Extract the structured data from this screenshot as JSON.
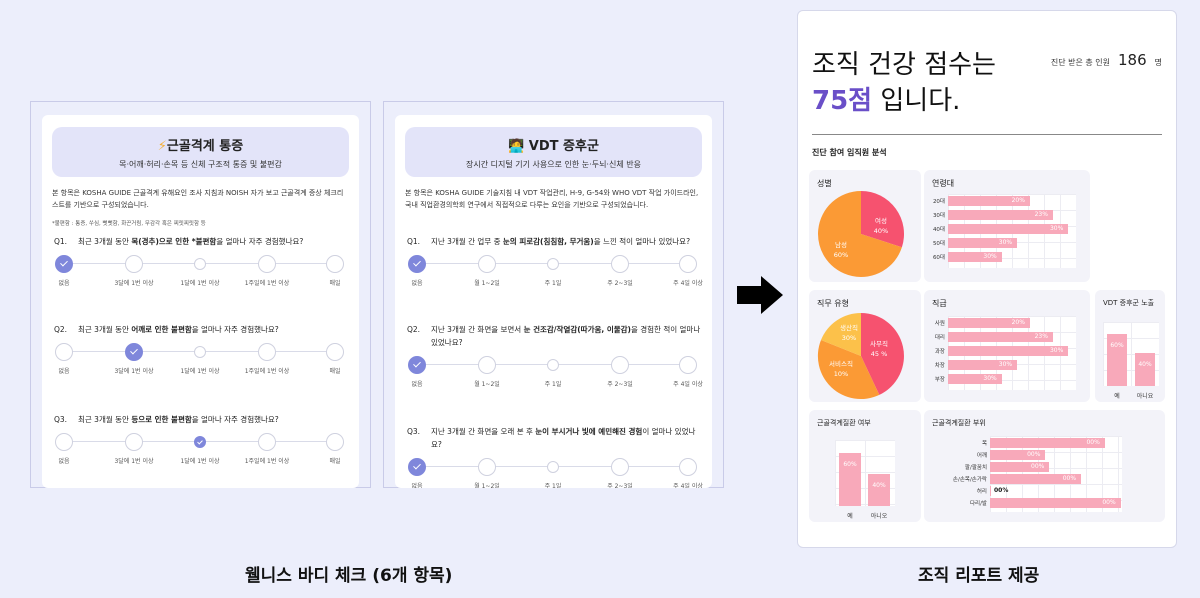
{
  "left_section": {
    "caption": "웰니스 바디 체크 (6개 항목)",
    "cards": [
      {
        "icon": "⚡",
        "title": "근골격계 통증",
        "subtitle": "목·어깨·허리·손목 등 신체 구조적 통증 및 불편감",
        "description": "본 항목은 KOSHA GUIDE 근골격계 유해요인 조사 지침과 NOISH 자가 보고 근골격계 증상 체크리스트를 기반으로 구성되었습니다.",
        "note": "*불편함 : 통증, 쑤심, 뻣뻣함, 화끈거림, 무감각 혹은 찌릿찌릿함 등",
        "scale_labels": [
          "없음",
          "3달에 1번 이상",
          "1달에 1번 이상",
          "1주일에 1번 이상",
          "매일"
        ],
        "questions": [
          {
            "num": "Q1.",
            "pre": "최근 3개월 동안 ",
            "bold": "목(경추)으로 인한 *불편함",
            "post": "을 얼마나 자주 경험했나요?",
            "selected": 0
          },
          {
            "num": "Q2.",
            "pre": "최근 3개월 동안 ",
            "bold": "어깨로 인한 불편함",
            "post": "을 얼마나 자주 경험했나요?",
            "selected": 1
          },
          {
            "num": "Q3.",
            "pre": "최근 3개월 동안 ",
            "bold": "등으로 인한 불편함",
            "post": "을 얼마나 자주 경험했나요?",
            "selected": 2
          }
        ]
      },
      {
        "icon": "🧑‍💻",
        "title": "VDT 증후군",
        "subtitle": "장시간 디지털 기기 사용으로 인한 눈·두뇌·신체 반응",
        "description": "본 항목은 KOSHA GUIDE 기술지침 내 VDT 작업관리, H-9, G-54와 WHO VDT 작업 가이드라인, 국내 직업환경의학회 연구에서 직접적으로 다루는 요인을 기반으로 구성되었습니다.",
        "scale_labels": [
          "없음",
          "월 1~2일",
          "주 1일",
          "주 2~3일",
          "주 4일 이상"
        ],
        "questions": [
          {
            "num": "Q1.",
            "pre": "지난 3개월 간 업무 중 ",
            "bold": "눈의 피로감(침침함, 무거움)",
            "post": "을 느낀 적이 얼마나 있었나요?",
            "selected": 0
          },
          {
            "num": "Q2.",
            "pre": "지난 3개월 간 화면을 보면서 ",
            "bold": "눈 건조감/작열감(따가움, 이물감)",
            "post": "을 경험한 적이 얼마나 있었나요?",
            "selected": 0
          },
          {
            "num": "Q3.",
            "pre": "지난 3개월 간 화면을 오래 본 후 ",
            "bold": "눈이 부시거나 빛에 예민해진 경험",
            "post": "이 얼마나 있었나요?",
            "selected": 0
          }
        ]
      }
    ]
  },
  "arrow": {
    "icon": "right-arrow"
  },
  "right_section": {
    "caption": "조직 리포트 제공",
    "report": {
      "title_line1": "조직 건강 점수는",
      "score": "75점",
      "title_suffix": " 입니다.",
      "count_label": "진단 받은 총 인원",
      "count_value": "186",
      "count_unit": "명",
      "section_title": "진단 참여 임직원 분석"
    }
  },
  "colors": {
    "accent_purple": "#6a4fc8",
    "check_blue": "#7f87db",
    "bar_pink": "#f8a9ba",
    "pie_red": "#f6526f",
    "pie_orange": "#fb9a35",
    "pie_yellow": "#fcc14a",
    "header_lavender": "#e3e4f9"
  },
  "chart_data": [
    {
      "id": "gender",
      "type": "pie",
      "title": "성별",
      "categories": [
        "여성",
        "남성"
      ],
      "values": [
        40,
        60
      ],
      "labels": [
        "40%",
        "60%"
      ]
    },
    {
      "id": "age",
      "type": "bar",
      "orientation": "horizontal",
      "title": "연령대",
      "categories": [
        "20대",
        "30대",
        "40대",
        "50대",
        "60대"
      ],
      "values": [
        20,
        23,
        30,
        30,
        30
      ],
      "labels": [
        "20%",
        "23%",
        "30%",
        "30%",
        "30%"
      ],
      "bar_widths": [
        64,
        82,
        94,
        54,
        42
      ]
    },
    {
      "id": "job_type",
      "type": "pie",
      "title": "직무 유형",
      "categories": [
        "사무직",
        "서비스직",
        "생산직"
      ],
      "values": [
        45,
        10,
        30
      ],
      "labels": [
        "45 %",
        "10%",
        "30%"
      ]
    },
    {
      "id": "rank",
      "type": "bar",
      "orientation": "horizontal",
      "title": "직급",
      "categories": [
        "사원",
        "대리",
        "과장",
        "차장",
        "부장"
      ],
      "values": [
        20,
        23,
        30,
        30,
        30
      ],
      "labels": [
        "20%",
        "23%",
        "30%",
        "30%",
        "30%"
      ],
      "bar_widths": [
        64,
        82,
        94,
        54,
        42
      ]
    },
    {
      "id": "vdt_exposure",
      "type": "bar",
      "title": "VDT 증후군 노출",
      "categories": [
        "예",
        "아니요"
      ],
      "values": [
        60,
        40
      ],
      "labels": [
        "60%",
        "40%"
      ]
    },
    {
      "id": "msd_presence",
      "type": "bar",
      "title": "근골격계질환 여부",
      "categories": [
        "예",
        "아니오"
      ],
      "values": [
        60,
        40
      ],
      "labels": [
        "60%",
        "40%"
      ]
    },
    {
      "id": "msd_site",
      "type": "bar",
      "orientation": "horizontal",
      "title": "근골격계질환 부위",
      "categories": [
        "목",
        "어깨",
        "팔/팔꿈치",
        "손/손목/손가락",
        "허리",
        "다리/발"
      ],
      "labels": [
        "00%",
        "00%",
        "00%",
        "00%",
        "00%",
        "00%"
      ],
      "bar_widths": [
        87,
        42,
        45,
        69,
        1,
        99
      ]
    }
  ]
}
